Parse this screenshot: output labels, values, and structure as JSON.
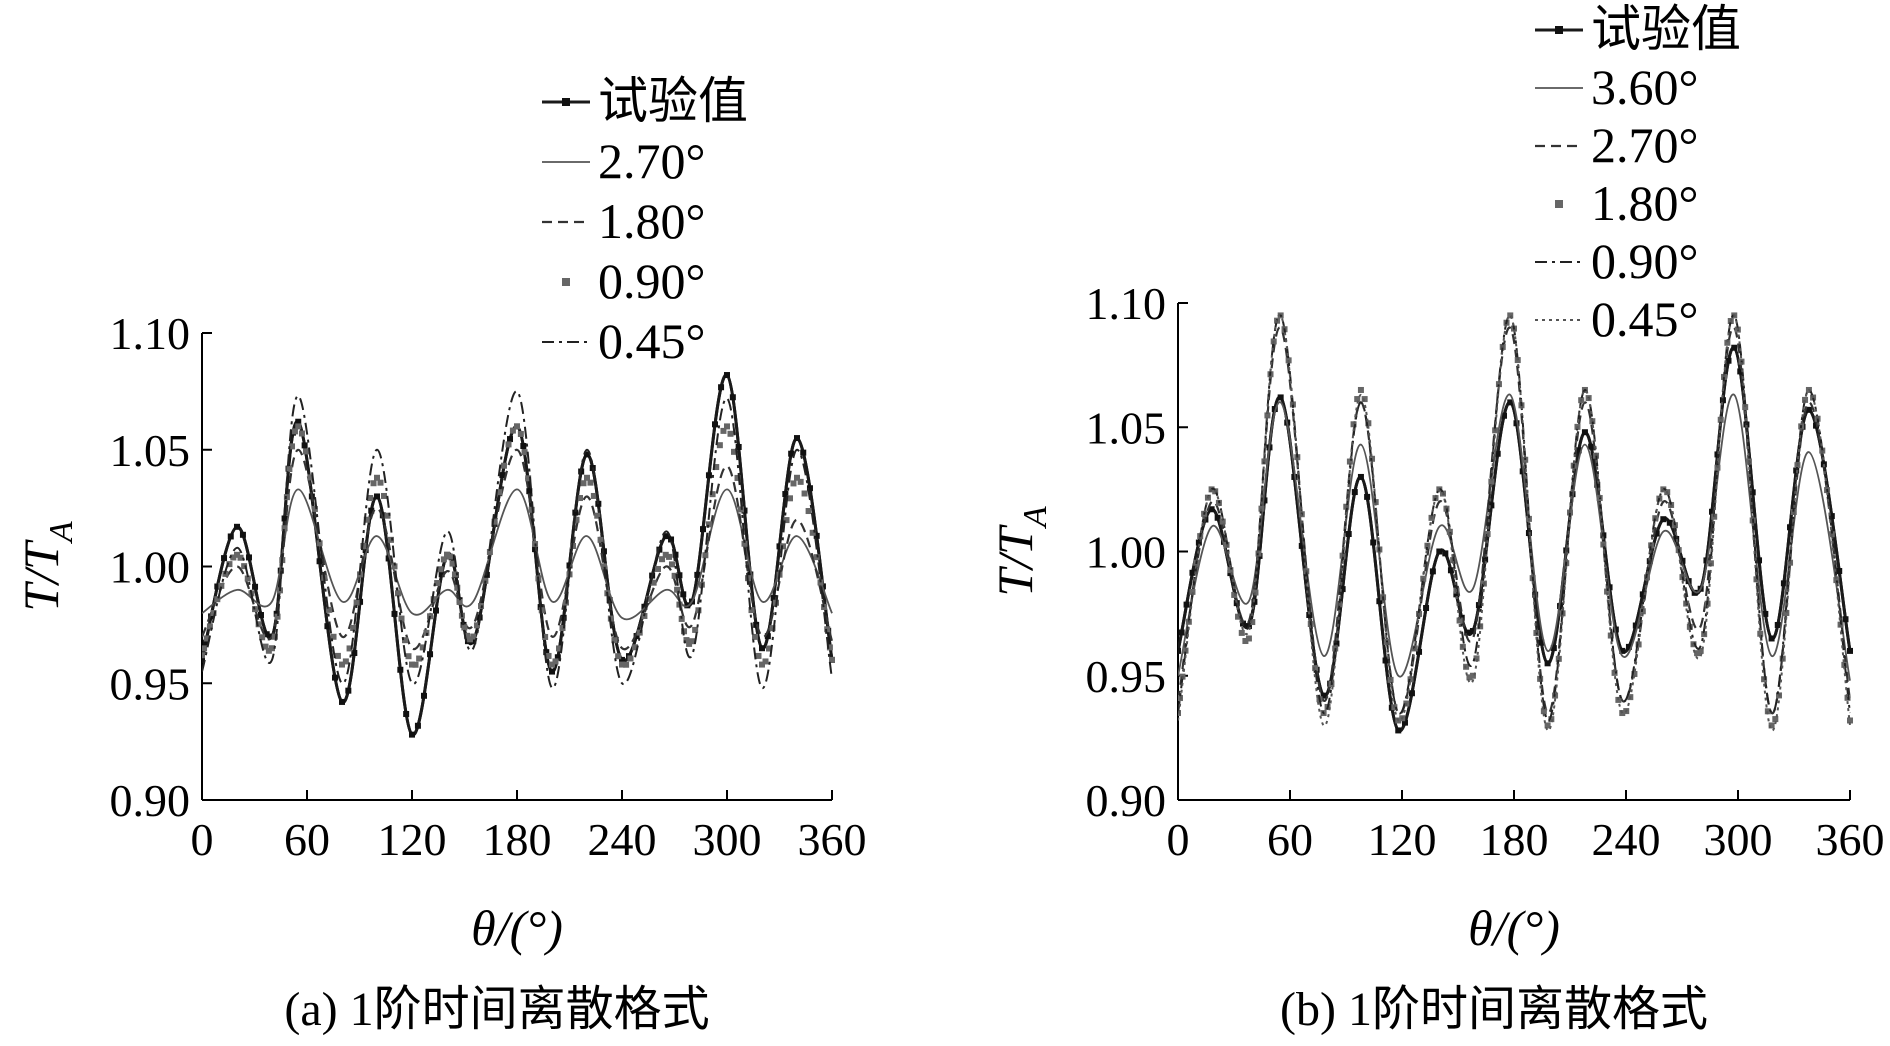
{
  "chart_data": [
    {
      "type": "line",
      "caption": "(a)  1阶时间离散格式",
      "xlabel": "θ/(°)",
      "ylabel": "T/T_A",
      "ylabel_main": "T/T",
      "ylabel_sub": "A",
      "xlim": [
        0,
        360
      ],
      "ylim": [
        0.9,
        1.1
      ],
      "xticks": [
        "0",
        "60",
        "120",
        "180",
        "240",
        "300",
        "360"
      ],
      "yticks": [
        "0.90",
        "0.95",
        "1.00",
        "1.05",
        "1.10"
      ],
      "legend_position": "top-right",
      "series": [
        {
          "name": "试验值",
          "style": "solid-square",
          "x": [
            0,
            20,
            40,
            55,
            80,
            100,
            120,
            140,
            155,
            180,
            200,
            220,
            240,
            265,
            280,
            300,
            320,
            340,
            360
          ],
          "y": [
            0.96,
            1.017,
            0.97,
            1.062,
            0.942,
            1.03,
            0.928,
            1.005,
            0.968,
            1.06,
            0.955,
            1.048,
            0.96,
            1.013,
            0.985,
            1.082,
            0.965,
            1.055,
            0.96
          ]
        },
        {
          "name": "2.70°",
          "style": "solid-thin",
          "x": [
            0,
            20,
            40,
            55,
            80,
            100,
            120,
            140,
            155,
            180,
            200,
            220,
            240,
            265,
            280,
            300,
            320,
            340,
            360
          ],
          "y": [
            0.98,
            0.99,
            0.985,
            1.033,
            0.985,
            1.013,
            0.98,
            0.99,
            0.985,
            1.033,
            0.985,
            1.013,
            0.978,
            0.99,
            0.985,
            1.033,
            0.985,
            1.013,
            0.98
          ]
        },
        {
          "name": "1.80°",
          "style": "dashed",
          "x": [
            0,
            20,
            40,
            55,
            80,
            100,
            120,
            140,
            155,
            180,
            200,
            220,
            240,
            265,
            280,
            300,
            320,
            340,
            360
          ],
          "y": [
            0.97,
            1.0,
            0.97,
            1.05,
            0.97,
            1.025,
            0.965,
            0.998,
            0.975,
            1.05,
            0.97,
            1.03,
            0.965,
            1.0,
            0.975,
            1.043,
            0.97,
            1.02,
            0.968
          ]
        },
        {
          "name": "0.90°",
          "style": "dotted-square",
          "x": [
            0,
            20,
            40,
            55,
            80,
            100,
            120,
            140,
            155,
            180,
            200,
            220,
            240,
            265,
            280,
            300,
            320,
            340,
            360
          ],
          "y": [
            0.962,
            1.005,
            0.965,
            1.06,
            0.958,
            1.038,
            0.958,
            1.005,
            0.97,
            1.06,
            0.958,
            1.038,
            0.958,
            1.005,
            0.968,
            1.06,
            0.958,
            1.038,
            0.96
          ]
        },
        {
          "name": "0.45°",
          "style": "dashdot",
          "x": [
            0,
            20,
            40,
            55,
            80,
            100,
            120,
            140,
            155,
            180,
            200,
            220,
            240,
            265,
            280,
            300,
            320,
            340,
            360
          ],
          "y": [
            0.955,
            1.008,
            0.96,
            1.073,
            0.95,
            1.05,
            0.95,
            1.015,
            0.965,
            1.075,
            0.948,
            1.05,
            0.95,
            1.015,
            0.962,
            1.072,
            0.948,
            1.05,
            0.952
          ]
        }
      ]
    },
    {
      "type": "line",
      "caption": "(b)  1阶时间离散格式",
      "xlabel": "θ/(°)",
      "ylabel": "T/T_A",
      "ylabel_main": "T/T",
      "ylabel_sub": "A",
      "xlim": [
        0,
        360
      ],
      "ylim": [
        0.9,
        1.1
      ],
      "xticks": [
        "0",
        "60",
        "120",
        "180",
        "240",
        "300",
        "360"
      ],
      "yticks": [
        "0.90",
        "0.95",
        "1.00",
        "1.05",
        "1.10"
      ],
      "legend_position": "top-right",
      "series": [
        {
          "name": "试验值",
          "style": "solid-square",
          "x": [
            0,
            18,
            38,
            55,
            78,
            98,
            118,
            140,
            158,
            178,
            198,
            218,
            238,
            260,
            280,
            298,
            318,
            338,
            360
          ],
          "y": [
            0.96,
            1.017,
            0.97,
            1.062,
            0.942,
            1.03,
            0.928,
            1.0,
            0.968,
            1.06,
            0.955,
            1.048,
            0.96,
            1.013,
            0.985,
            1.082,
            0.965,
            1.057,
            0.96
          ]
        },
        {
          "name": "3.60°",
          "style": "solid-thin",
          "x": [
            0,
            18,
            38,
            55,
            78,
            98,
            118,
            140,
            158,
            178,
            198,
            218,
            238,
            260,
            280,
            298,
            318,
            338,
            360
          ],
          "y": [
            0.95,
            1.01,
            0.98,
            1.06,
            0.958,
            1.043,
            0.95,
            1.01,
            0.985,
            1.063,
            0.96,
            1.043,
            0.958,
            1.008,
            0.985,
            1.063,
            0.958,
            1.04,
            0.948
          ]
        },
        {
          "name": "2.70°",
          "style": "dashed",
          "x": [
            0,
            18,
            38,
            55,
            78,
            98,
            118,
            140,
            158,
            178,
            198,
            218,
            238,
            260,
            280,
            298,
            318,
            338,
            360
          ],
          "y": [
            0.94,
            1.02,
            0.972,
            1.09,
            0.94,
            1.06,
            0.935,
            1.02,
            0.965,
            1.09,
            0.935,
            1.06,
            0.94,
            1.02,
            0.97,
            1.09,
            0.935,
            1.06,
            0.94
          ]
        },
        {
          "name": "1.80°",
          "style": "dotted-square",
          "x": [
            0,
            18,
            38,
            55,
            78,
            98,
            118,
            140,
            158,
            178,
            198,
            218,
            238,
            260,
            280,
            298,
            318,
            338,
            360
          ],
          "y": [
            0.935,
            1.025,
            0.965,
            1.095,
            0.935,
            1.065,
            0.932,
            1.025,
            0.95,
            1.095,
            0.93,
            1.065,
            0.935,
            1.025,
            0.96,
            1.095,
            0.93,
            1.065,
            0.932
          ]
        },
        {
          "name": "0.90°",
          "style": "dashdot",
          "x": [
            0,
            18,
            38,
            55,
            78,
            98,
            118,
            140,
            158,
            178,
            198,
            218,
            238,
            260,
            280,
            298,
            318,
            338,
            360
          ],
          "y": [
            0.935,
            1.025,
            0.97,
            1.095,
            0.935,
            1.06,
            0.935,
            1.025,
            0.955,
            1.095,
            0.932,
            1.065,
            0.94,
            1.025,
            0.962,
            1.095,
            0.935,
            1.065,
            0.935
          ]
        },
        {
          "name": "0.45°",
          "style": "dotted-thin",
          "x": [
            0,
            18,
            38,
            55,
            78,
            98,
            118,
            140,
            158,
            178,
            198,
            218,
            238,
            260,
            280,
            298,
            318,
            338,
            360
          ],
          "y": [
            0.932,
            1.025,
            0.968,
            1.095,
            0.93,
            1.063,
            0.932,
            1.025,
            0.948,
            1.095,
            0.928,
            1.065,
            0.935,
            1.025,
            0.958,
            1.095,
            0.928,
            1.065,
            0.93
          ]
        }
      ]
    }
  ]
}
